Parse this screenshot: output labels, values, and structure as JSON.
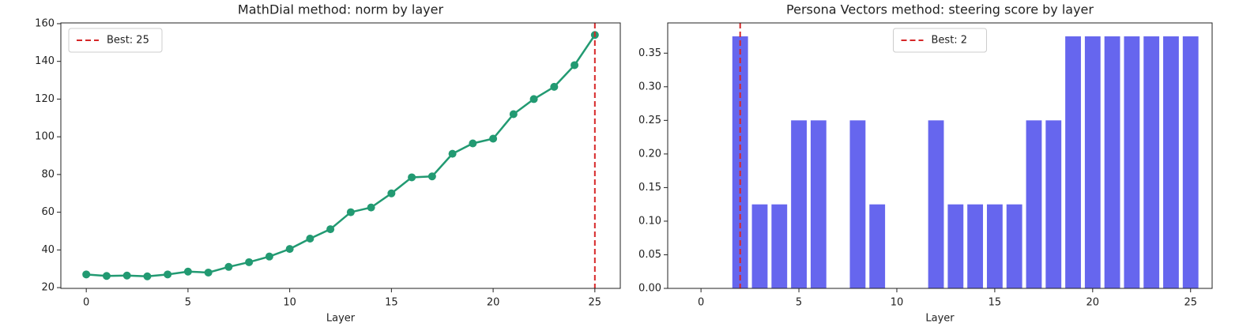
{
  "chart_data": [
    {
      "type": "line",
      "title": "MathDial method: norm by layer",
      "xlabel": "Layer",
      "x": [
        0,
        1,
        2,
        3,
        4,
        5,
        6,
        7,
        8,
        9,
        10,
        11,
        12,
        13,
        14,
        15,
        16,
        17,
        18,
        19,
        20,
        21,
        22,
        23,
        24,
        25
      ],
      "series": [
        {
          "name": "norm",
          "color": "#229a72",
          "values": [
            27,
            26.2,
            26.4,
            26,
            27,
            28.5,
            28,
            31,
            33.5,
            36.5,
            40.5,
            46,
            51,
            60,
            62.5,
            70,
            78.5,
            79,
            91,
            96.5,
            99,
            112,
            120,
            126.5,
            138,
            154
          ]
        }
      ],
      "xlim": [
        -1.25,
        26.25
      ],
      "xticks": [
        0,
        5,
        10,
        15,
        20,
        25
      ],
      "ylim": [
        19.6,
        160.4
      ],
      "yticks": [
        20,
        40,
        60,
        80,
        100,
        120,
        140,
        160
      ],
      "best": {
        "x": 25,
        "label": "Best: 25",
        "color": "#d62728"
      },
      "legend": "upper left"
    },
    {
      "type": "bar",
      "title": "Persona Vectors method: steering score by layer",
      "xlabel": "Layer",
      "x": [
        0,
        1,
        2,
        3,
        4,
        5,
        6,
        7,
        8,
        9,
        10,
        11,
        12,
        13,
        14,
        15,
        16,
        17,
        18,
        19,
        20,
        21,
        22,
        23,
        24,
        25
      ],
      "series": [
        {
          "name": "steering score",
          "color": "#6666ee",
          "values": [
            0,
            0,
            0.375,
            0.125,
            0.125,
            0.25,
            0.25,
            0,
            0.25,
            0.125,
            0,
            0,
            0.25,
            0.125,
            0.125,
            0.125,
            0.125,
            0.25,
            0.25,
            0.375,
            0.375,
            0.375,
            0.375,
            0.375,
            0.375,
            0.375
          ]
        }
      ],
      "xlim": [
        -1.7,
        26.1
      ],
      "xticks": [
        0,
        5,
        10,
        15,
        20,
        25
      ],
      "ylim": [
        0,
        0.395
      ],
      "yticks": [
        {
          "value": 0,
          "label": "0.00"
        },
        {
          "value": 0.05,
          "label": "0.05"
        },
        {
          "value": 0.1,
          "label": "0.10"
        },
        {
          "value": 0.15,
          "label": "0.15"
        },
        {
          "value": 0.2,
          "label": "0.20"
        },
        {
          "value": 0.25,
          "label": "0.25"
        },
        {
          "value": 0.3,
          "label": "0.30"
        },
        {
          "value": 0.35,
          "label": "0.35"
        }
      ],
      "best": {
        "x": 2,
        "label": "Best: 2",
        "color": "#d62728"
      },
      "legend": "upper center"
    }
  ]
}
